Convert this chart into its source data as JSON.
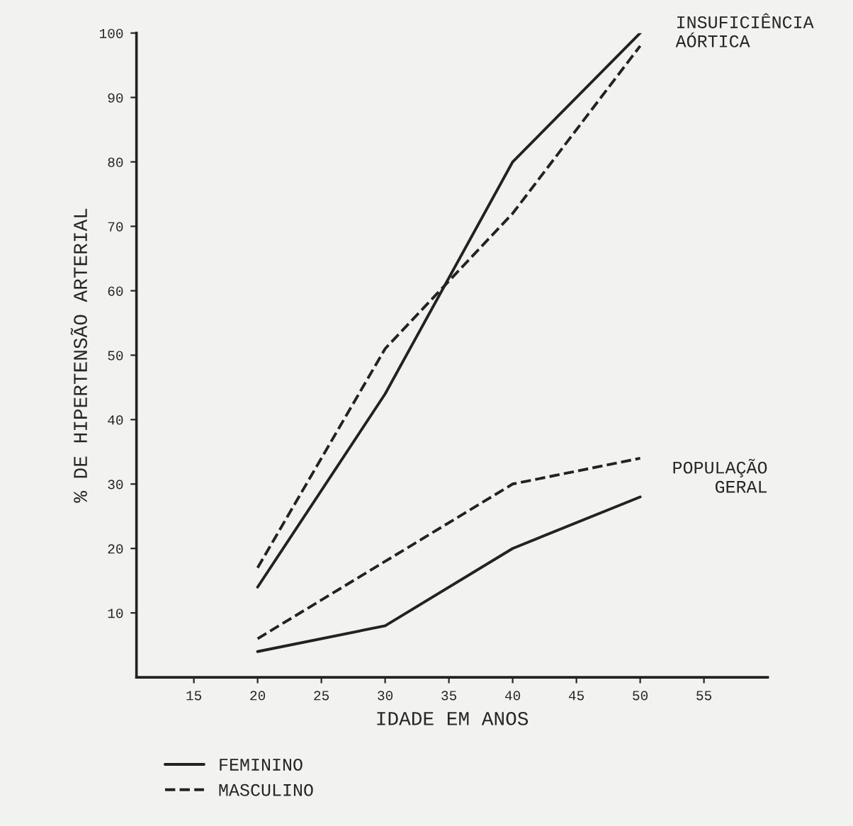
{
  "chart_data": {
    "type": "line",
    "xlabel": "IDADE EM ANOS",
    "ylabel": "% DE HIPERTENSÃO ARTERIAL",
    "x": [
      20,
      30,
      40,
      50
    ],
    "series": [
      {
        "name": "FEMININO",
        "color": "#222222",
        "line_style": "solid",
        "values": [
          14,
          44,
          80,
          100
        ]
      },
      {
        "name": "MASCULINO",
        "color": "#222222",
        "line_style": "dashed",
        "values": [
          17,
          51,
          72,
          98
        ]
      },
      {
        "color": "#222222",
        "line_style": "solid",
        "values": [
          4,
          8,
          20,
          28
        ]
      },
      {
        "color": "#222222",
        "line_style": "dashed",
        "values": [
          6,
          18,
          30,
          34
        ]
      }
    ],
    "xlim": [
      10.5,
      60
    ],
    "xticks": [
      15,
      20,
      25,
      30,
      35,
      40,
      45,
      50,
      55
    ],
    "ylim": [
      0,
      100
    ],
    "yticks": [
      10,
      20,
      30,
      40,
      50,
      60,
      70,
      80,
      90,
      100
    ],
    "annotations": [
      {
        "text": "INSUFICIÊNCIA\nAÓRTICA",
        "x": 50,
        "y": 100
      },
      "POPULAÇÃO\nGERAL"
    ],
    "grid": false,
    "legend": "bottom left",
    "marker": "none"
  }
}
